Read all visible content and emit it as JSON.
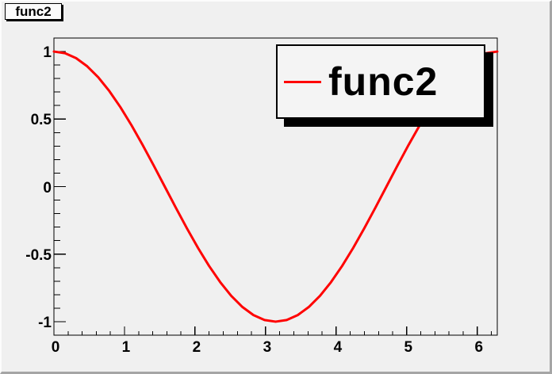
{
  "window": {
    "title_box": "func2"
  },
  "legend": {
    "entries": [
      {
        "label": "func2",
        "color": "#ff0000",
        "style": "line"
      }
    ],
    "position": "top-right"
  },
  "colors": {
    "curve": "#ff0000",
    "axis": "#000000",
    "canvas_bg": "#f0f0f0",
    "pave_bg": "#f4f4f4"
  },
  "chart_data": {
    "type": "line",
    "title": "func2",
    "function": "cos(x)",
    "xlabel": "",
    "ylabel": "",
    "xlim": [
      0,
      6.2832
    ],
    "ylim": [
      -1.1,
      1.1
    ],
    "grid": false,
    "legend_position": "top-right",
    "x_major_ticks": [
      0,
      1,
      2,
      3,
      4,
      5,
      6
    ],
    "x_tick_labels": [
      "0",
      "1",
      "2",
      "3",
      "4",
      "5",
      "6"
    ],
    "x_minor_step": 0.2,
    "y_major_ticks": [
      -1,
      -0.5,
      0,
      0.5,
      1
    ],
    "y_tick_labels": [
      "-1",
      "-0.5",
      "0",
      "0.5",
      "1"
    ],
    "y_minor_step": 0.1,
    "series": [
      {
        "name": "func2",
        "color": "#ff0000",
        "line_width": 3,
        "x": [
          0,
          0.1571,
          0.3142,
          0.4712,
          0.6283,
          0.7854,
          0.9425,
          1.0996,
          1.2566,
          1.4137,
          1.5708,
          1.7279,
          1.885,
          2.042,
          2.1991,
          2.3562,
          2.5133,
          2.6704,
          2.8274,
          2.9845,
          3.1416,
          3.2987,
          3.4558,
          3.6128,
          3.7699,
          3.927,
          4.0841,
          4.2412,
          4.3982,
          4.5553,
          4.7124,
          4.8695,
          5.0265,
          5.1836,
          5.3407,
          5.4978,
          5.6549,
          5.8119,
          5.969,
          6.1261,
          6.2832
        ],
        "y": [
          1,
          0.9877,
          0.9511,
          0.891,
          0.809,
          0.7071,
          0.5878,
          0.454,
          0.309,
          0.1564,
          0,
          -0.1564,
          -0.309,
          -0.454,
          -0.5878,
          -0.7071,
          -0.809,
          -0.891,
          -0.9511,
          -0.9877,
          -1,
          -0.9877,
          -0.9511,
          -0.891,
          -0.809,
          -0.7071,
          -0.5878,
          -0.454,
          -0.309,
          -0.1564,
          0,
          0.1564,
          0.309,
          0.454,
          0.5878,
          0.7071,
          0.809,
          0.891,
          0.9511,
          0.9877,
          1
        ]
      }
    ]
  }
}
